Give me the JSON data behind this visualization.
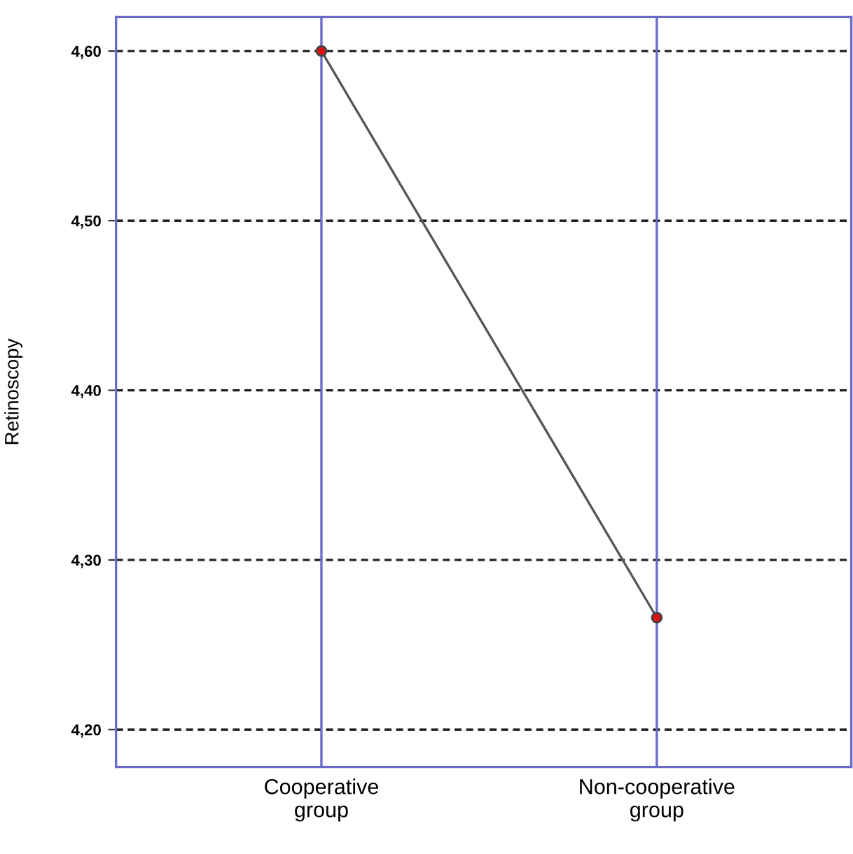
{
  "chart_data": {
    "type": "line",
    "ylabel": "Retinoscopy",
    "categories": [
      "Cooperative\ngroup",
      "Non-cooperative\ngroup"
    ],
    "series": [
      {
        "color": "#555555",
        "values": [
          4.6,
          4.266
        ]
      }
    ],
    "marker": "circle",
    "line_style": "solid",
    "ylim": [
      4.178,
      4.62
    ],
    "yticks": [
      {
        "value": 4.2,
        "label": "4,20"
      },
      {
        "value": 4.3,
        "label": "4,30"
      },
      {
        "value": 4.4,
        "label": "4,40"
      },
      {
        "value": 4.5,
        "label": "4,50"
      },
      {
        "value": 4.6,
        "label": "4,60"
      }
    ],
    "grid": true
  }
}
